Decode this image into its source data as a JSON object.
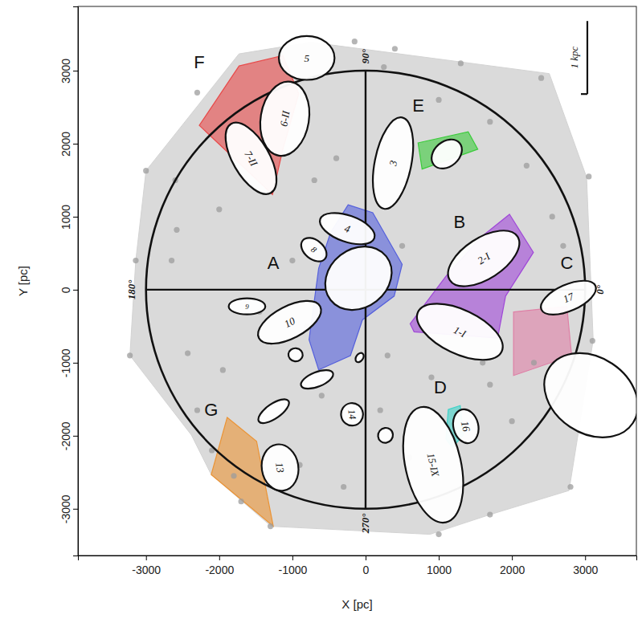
{
  "chart_data": {
    "type": "scatter",
    "x_label": "X [pc]",
    "y_label": "Y [pc]",
    "xlim": [
      -3930,
      3700
    ],
    "ylim": [
      -3640,
      3880
    ],
    "xticks": [
      -3000,
      -2000,
      -1000,
      0,
      1000,
      2000,
      3000
    ],
    "yticks": [
      -3000,
      -2000,
      -1000,
      0,
      1000,
      2000,
      3000
    ],
    "color": "#9c9c9c",
    "points": [
      {
        "x": -3000,
        "y": 1630
      },
      {
        "x": -3140,
        "y": 400
      },
      {
        "x": -3220,
        "y": -900
      },
      {
        "x": -2580,
        "y": 820
      },
      {
        "x": -2430,
        "y": -870
      },
      {
        "x": -2300,
        "y": -1650
      },
      {
        "x": -2100,
        "y": -2200
      },
      {
        "x": -1800,
        "y": -2550
      },
      {
        "x": -1300,
        "y": -3240
      },
      {
        "x": -1700,
        "y": -2900
      },
      {
        "x": -2000,
        "y": 1100
      },
      {
        "x": -1450,
        "y": -300
      },
      {
        "x": -1000,
        "y": 400
      },
      {
        "x": -700,
        "y": 1500
      },
      {
        "x": -400,
        "y": 1800
      },
      {
        "x": -150,
        "y": 3400
      },
      {
        "x": 400,
        "y": 3300
      },
      {
        "x": 250,
        "y": 3050
      },
      {
        "x": 1000,
        "y": 2600
      },
      {
        "x": 1700,
        "y": 2300
      },
      {
        "x": 2400,
        "y": 2900
      },
      {
        "x": 2550,
        "y": 1000
      },
      {
        "x": 3050,
        "y": 1550
      },
      {
        "x": 2700,
        "y": 600
      },
      {
        "x": 3100,
        "y": -700
      },
      {
        "x": 2800,
        "y": -2700
      },
      {
        "x": 1700,
        "y": -3080
      },
      {
        "x": 1000,
        "y": -3350
      },
      {
        "x": 2000,
        "y": -1800
      },
      {
        "x": 1600,
        "y": -1000
      },
      {
        "x": 900,
        "y": -1200
      },
      {
        "x": 300,
        "y": -900
      },
      {
        "x": -600,
        "y": -1450
      },
      {
        "x": -900,
        "y": -2400
      },
      {
        "x": -300,
        "y": -2700
      },
      {
        "x": 600,
        "y": -2300
      },
      {
        "x": -2650,
        "y": 400
      },
      {
        "x": -1950,
        "y": -1100
      },
      {
        "x": -800,
        "y": -500
      },
      {
        "x": 200,
        "y": -1650
      },
      {
        "x": 2300,
        "y": -1000
      },
      {
        "x": 2200,
        "y": 1700
      },
      {
        "x": 1300,
        "y": 3100
      },
      {
        "x": -2600,
        "y": 1500
      },
      {
        "x": 500,
        "y": 600
      },
      {
        "x": 1700,
        "y": -1300
      },
      {
        "x": -2300,
        "y": 2700
      }
    ],
    "hull": {
      "color": "#d3d3d3",
      "points": [
        [
          -3000,
          1630
        ],
        [
          -1730,
          3230
        ],
        [
          -750,
          3390
        ],
        [
          2510,
          2960
        ],
        [
          3020,
          1540
        ],
        [
          3110,
          -690
        ],
        [
          2780,
          -2750
        ],
        [
          1700,
          -3080
        ],
        [
          880,
          -3350
        ],
        [
          -1290,
          -3240
        ],
        [
          -2110,
          -2530
        ],
        [
          -2380,
          -1990
        ],
        [
          -3220,
          -900
        ],
        [
          -3140,
          400
        ]
      ]
    },
    "regions": [
      {
        "name": "A",
        "color": "#5560dc",
        "x": -1261,
        "y": 370,
        "points": [
          [
            -239,
            1163
          ],
          [
            98,
            1054
          ],
          [
            500,
            348
          ],
          [
            391,
            -87
          ],
          [
            -43,
            -413
          ],
          [
            -207,
            -902
          ],
          [
            -641,
            -1098
          ],
          [
            -772,
            -685
          ],
          [
            -641,
            293
          ],
          [
            -478,
            783
          ]
        ]
      },
      {
        "name": "B",
        "color": "#a048d8",
        "x": 1283,
        "y": 924,
        "points": [
          [
            1967,
            1033
          ],
          [
            2293,
            511
          ],
          [
            1913,
            -87
          ],
          [
            1804,
            -663
          ],
          [
            663,
            -576
          ],
          [
            609,
            -467
          ],
          [
            1098,
            185
          ],
          [
            1587,
            728
          ]
        ]
      },
      {
        "name": "C",
        "color": "#df80a6",
        "x": 2750,
        "y": 370,
        "points": [
          [
            2022,
            -304
          ],
          [
            2750,
            -228
          ],
          [
            2815,
            -902
          ],
          [
            2022,
            -1174
          ]
        ]
      },
      {
        "name": "D",
        "color": "#3fd3c9",
        "x": 1022,
        "y": -1337,
        "points": [
          [
            1130,
            -1641
          ],
          [
            1293,
            -1587
          ],
          [
            1337,
            -1989
          ],
          [
            1185,
            -2163
          ],
          [
            1098,
            -2043
          ]
        ]
      },
      {
        "name": "E",
        "color": "#3ccc3c",
        "x": 720,
        "y": 2522,
        "points": [
          [
            717,
            2011
          ],
          [
            1402,
            2163
          ],
          [
            1533,
            1924
          ],
          [
            772,
            1652
          ]
        ]
      },
      {
        "name": "F",
        "color": "#e84a4a",
        "x": -2272,
        "y": 3120,
        "points": [
          [
            -1728,
            3065
          ],
          [
            -1130,
            3207
          ],
          [
            -913,
            2685
          ],
          [
            -1130,
            1924
          ],
          [
            -1272,
            1304
          ],
          [
            -2272,
            2250
          ]
        ]
      },
      {
        "name": "G",
        "color": "#eb9436",
        "x": -2109,
        "y": -1641,
        "points": [
          [
            -1891,
            -1750
          ],
          [
            -1489,
            -2076
          ],
          [
            -1261,
            -3239
          ],
          [
            -2109,
            -2533
          ]
        ]
      }
    ],
    "circle": {
      "x": 0,
      "y": 0,
      "r": 3000
    },
    "angle_labels": [
      {
        "text": "90°",
        "x": 0,
        "y": 3000
      },
      {
        "text": "0°",
        "x": 3000,
        "y": 0
      },
      {
        "text": "180°",
        "x": -3000,
        "y": 0
      },
      {
        "text": "270°",
        "x": 0,
        "y": -3000
      }
    ],
    "scale_bar": {
      "label": "1 kpc",
      "x": 3030,
      "y1": 2680,
      "y2": 3680
    },
    "clouds": [
      {
        "label": "5",
        "x1": -1185,
        "y1": 3174,
        "x2": -424,
        "y2": 3174,
        "w": 300
      },
      {
        "label": "6-II",
        "x1": -1022,
        "y1": 2848,
        "x2": -1185,
        "y2": 1837,
        "w": 330
      },
      {
        "label": "7-II",
        "x1": -1837,
        "y1": 2272,
        "x2": -1293,
        "y2": 1326,
        "w": 250
      },
      {
        "label": "3",
        "x1": 500,
        "y1": 2359,
        "x2": 250,
        "y2": 1109,
        "w": 250
      },
      {
        "x1": 935,
        "y1": 1707,
        "x2": 1283,
        "y2": 2011,
        "w": 170
      },
      {
        "label": "4",
        "x1": -620,
        "y1": 967,
        "x2": 120,
        "y2": 707,
        "w": 180
      },
      {
        "label": "8",
        "x1": -859,
        "y1": 674,
        "x2": -554,
        "y2": 424,
        "w": 130
      },
      {
        "x1": -478,
        "y1": -141,
        "x2": 283,
        "y2": 457,
        "w": 400
      },
      {
        "label": "9",
        "x1": -1870,
        "y1": -228,
        "x2": -1370,
        "y2": -228,
        "w": 110
      },
      {
        "label": "10",
        "x1": -1457,
        "y1": -663,
        "x2": -620,
        "y2": -228,
        "w": 220
      },
      {
        "label": "2-I",
        "x1": 1152,
        "y1": 130,
        "x2": 2076,
        "y2": 728,
        "w": 280
      },
      {
        "label": "1-I",
        "x1": 717,
        "y1": -304,
        "x2": 1859,
        "y2": -848,
        "w": 300
      },
      {
        "label": "17",
        "x1": 2402,
        "y1": -272,
        "x2": 3141,
        "y2": 54,
        "w": 180
      },
      {
        "x1": 2511,
        "y1": -1065,
        "x2": 3652,
        "y2": -1826,
        "w": 520
      },
      {
        "x1": -1054,
        "y1": -880,
        "x2": -859,
        "y2": -902,
        "w": 90
      },
      {
        "x1": -120,
        "y1": -902,
        "x2": -43,
        "y2": -957,
        "w": 70
      },
      {
        "x1": -880,
        "y1": -1315,
        "x2": -446,
        "y2": -1141,
        "w": 100
      },
      {
        "x1": -1457,
        "y1": -1804,
        "x2": -1054,
        "y2": -1522,
        "w": 100
      },
      {
        "label": "14",
        "x1": -207,
        "y1": -1554,
        "x2": -163,
        "y2": -1859,
        "w": 150
      },
      {
        "x1": 207,
        "y1": -2076,
        "x2": 337,
        "y2": -1913,
        "w": 100
      },
      {
        "label": "15-IX",
        "x1": 750,
        "y1": -1609,
        "x2": 1098,
        "y2": -3185,
        "w": 380
      },
      {
        "label": "16",
        "x1": 1315,
        "y1": -1641,
        "x2": 1424,
        "y2": -2098,
        "w": 170
      },
      {
        "label": "13",
        "x1": -1217,
        "y1": -2120,
        "x2": -1120,
        "y2": -2750,
        "w": 250
      }
    ]
  }
}
